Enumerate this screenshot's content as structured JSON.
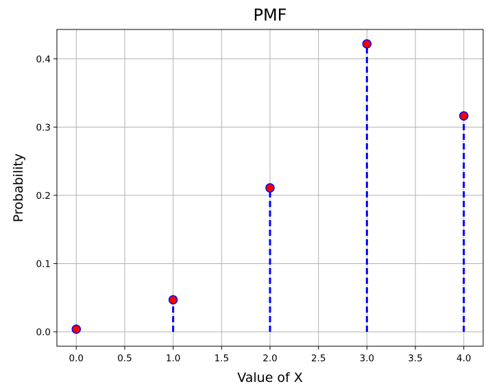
{
  "chart_data": {
    "type": "stem",
    "title": "PMF",
    "xlabel": "Value of X",
    "ylabel": "Probability",
    "x": [
      0,
      1,
      2,
      3,
      4
    ],
    "y": [
      0.0039,
      0.0469,
      0.2109,
      0.4219,
      0.3164
    ],
    "xlim": [
      -0.2,
      4.2
    ],
    "ylim": [
      -0.0211,
      0.443
    ],
    "xticks": [
      "0.0",
      "0.5",
      "1.0",
      "1.5",
      "2.0",
      "2.5",
      "3.0",
      "3.5",
      "4.0"
    ],
    "yticks": [
      "0.0",
      "0.1",
      "0.2",
      "0.3",
      "0.4"
    ],
    "grid": true,
    "colors": {
      "stem": "#0000ff",
      "marker_fill": "#ff0000",
      "marker_edge": "#0000ff",
      "grid": "#b0b0b0"
    }
  }
}
